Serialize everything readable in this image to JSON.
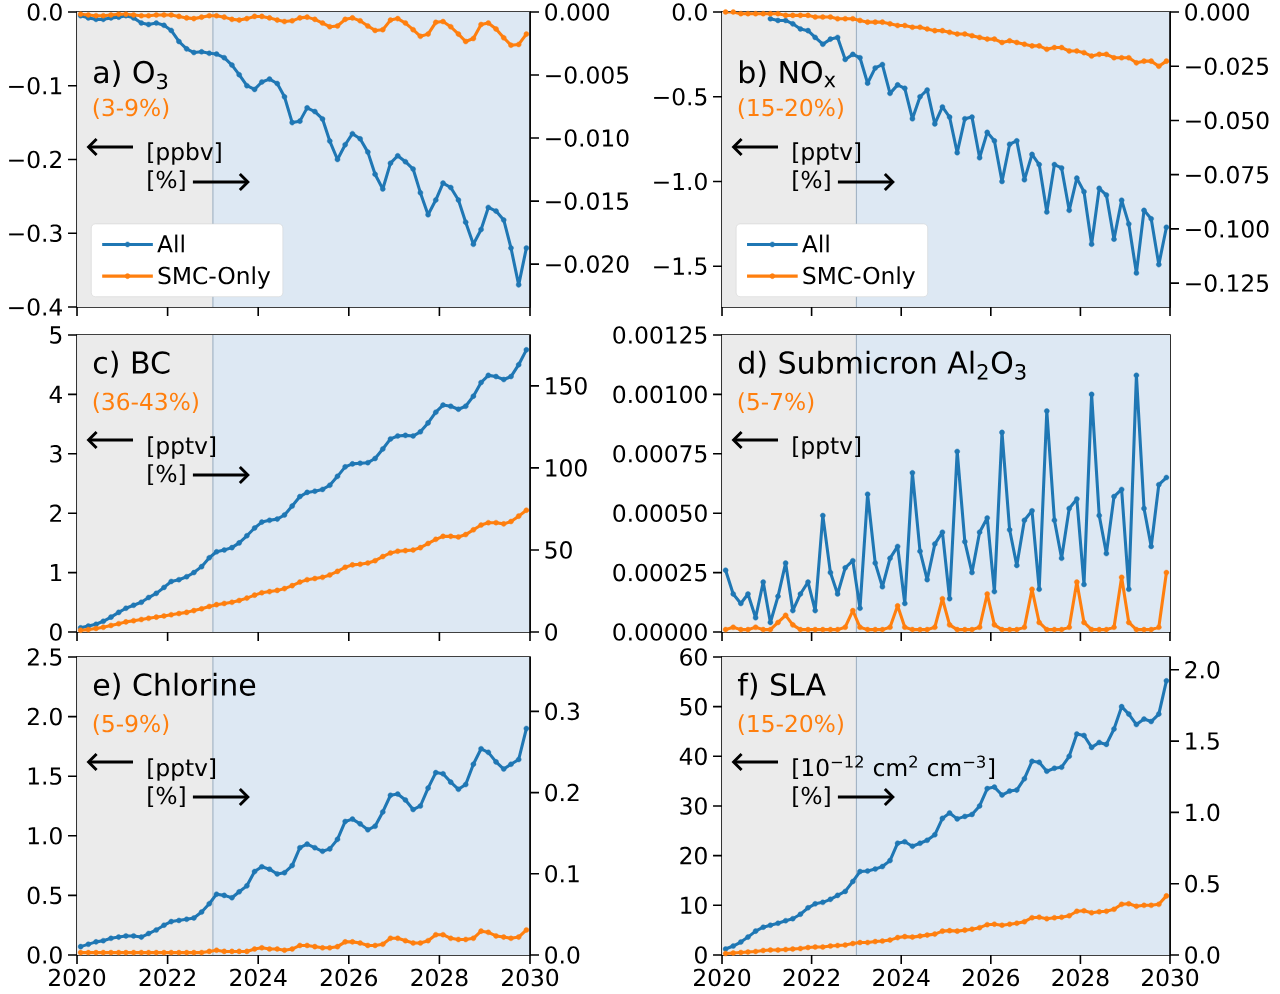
{
  "chart_data": [
    {
      "type": "line",
      "title": "a) O$_{3}$",
      "annotations": [
        "(3-9%)",
        "[ppbv]",
        "[%]"
      ],
      "marker": "circle",
      "legend": "bottom left",
      "tick_labels": "y",
      "xlim": [
        2020,
        2030
      ],
      "xticks": [
        2020,
        2022,
        2024,
        2026,
        2028,
        2030
      ],
      "ylim": [
        -0.4,
        0.0
      ],
      "yticks": [
        {
          "value": -0.4,
          "label": "−0.4"
        },
        {
          "value": -0.3,
          "label": "−0.3"
        },
        {
          "value": -0.2,
          "label": "−0.2"
        },
        {
          "value": -0.1,
          "label": "−0.1"
        },
        {
          "value": 0.0,
          "label": "0.0"
        }
      ],
      "y2lim": [
        -0.0234,
        0.0
      ],
      "y2ticks": [
        {
          "value": -0.02,
          "label": "−0.020"
        },
        {
          "value": -0.015,
          "label": "−0.015"
        },
        {
          "value": -0.01,
          "label": "−0.010"
        },
        {
          "value": -0.005,
          "label": "−0.005"
        },
        {
          "value": 0.0,
          "label": "0.000"
        }
      ],
      "bands": [
        {
          "axis": "x",
          "from": 2020,
          "to": 2023,
          "color": "#ebebeb"
        },
        {
          "axis": "x",
          "from": 2023,
          "to": 2030,
          "color": "#dde8f3"
        }
      ],
      "ref_lines": [
        {
          "axis": "x",
          "value": 2023,
          "color": "#a3b4c5"
        }
      ],
      "x": [
        2020.08,
        2020.25,
        2020.42,
        2020.58,
        2020.75,
        2020.92,
        2021.08,
        2021.25,
        2021.42,
        2021.58,
        2021.75,
        2021.92,
        2022.08,
        2022.25,
        2022.42,
        2022.58,
        2022.75,
        2022.92,
        2023.08,
        2023.25,
        2023.42,
        2023.58,
        2023.75,
        2023.92,
        2024.08,
        2024.25,
        2024.42,
        2024.58,
        2024.75,
        2024.92,
        2025.08,
        2025.25,
        2025.42,
        2025.58,
        2025.75,
        2025.92,
        2026.08,
        2026.25,
        2026.42,
        2026.58,
        2026.75,
        2026.92,
        2027.08,
        2027.25,
        2027.42,
        2027.58,
        2027.75,
        2027.92,
        2028.08,
        2028.25,
        2028.42,
        2028.58,
        2028.75,
        2028.92,
        2029.08,
        2029.25,
        2029.42,
        2029.58,
        2029.75,
        2029.92
      ],
      "series": [
        {
          "name": "All",
          "color": "#1f77b4",
          "values": [
            -0.005,
            -0.008,
            -0.01,
            -0.01,
            -0.008,
            -0.007,
            -0.005,
            -0.008,
            -0.015,
            -0.017,
            -0.015,
            -0.018,
            -0.025,
            -0.04,
            -0.05,
            -0.055,
            -0.054,
            -0.056,
            -0.057,
            -0.062,
            -0.072,
            -0.085,
            -0.1,
            -0.105,
            -0.095,
            -0.091,
            -0.097,
            -0.115,
            -0.15,
            -0.148,
            -0.13,
            -0.135,
            -0.145,
            -0.175,
            -0.2,
            -0.18,
            -0.165,
            -0.172,
            -0.19,
            -0.22,
            -0.24,
            -0.205,
            -0.195,
            -0.203,
            -0.213,
            -0.245,
            -0.275,
            -0.255,
            -0.232,
            -0.238,
            -0.255,
            -0.285,
            -0.315,
            -0.295,
            -0.265,
            -0.27,
            -0.282,
            -0.32,
            -0.37,
            -0.32
          ]
        },
        {
          "name": "SMC-Only",
          "color": "#ff7f0e",
          "values": [
            -0.003,
            -0.004,
            -0.005,
            -0.005,
            -0.004,
            -0.003,
            -0.003,
            -0.004,
            -0.005,
            -0.005,
            -0.004,
            -0.004,
            -0.004,
            -0.006,
            -0.008,
            -0.009,
            -0.007,
            -0.005,
            -0.005,
            -0.007,
            -0.01,
            -0.011,
            -0.009,
            -0.006,
            -0.006,
            -0.008,
            -0.011,
            -0.013,
            -0.012,
            -0.008,
            -0.007,
            -0.01,
            -0.015,
            -0.02,
            -0.019,
            -0.01,
            -0.008,
            -0.012,
            -0.019,
            -0.025,
            -0.024,
            -0.011,
            -0.009,
            -0.015,
            -0.024,
            -0.033,
            -0.03,
            -0.014,
            -0.013,
            -0.02,
            -0.03,
            -0.04,
            -0.036,
            -0.017,
            -0.015,
            -0.023,
            -0.035,
            -0.045,
            -0.044,
            -0.03
          ]
        }
      ]
    },
    {
      "type": "line",
      "title": "b) NO$_{x}$",
      "annotations": [
        "(15-20%)",
        "[pptv]",
        "[%]"
      ],
      "marker": "circle",
      "legend": "bottom left",
      "tick_labels": "y",
      "xlim": [
        2020,
        2030
      ],
      "xticks": [
        2020,
        2022,
        2024,
        2026,
        2028,
        2030
      ],
      "ylim": [
        -1.74,
        0.0
      ],
      "yticks": [
        {
          "value": -1.5,
          "label": "−1.5"
        },
        {
          "value": -1.0,
          "label": "−1.0"
        },
        {
          "value": -0.5,
          "label": "−0.5"
        },
        {
          "value": 0.0,
          "label": "0.0"
        }
      ],
      "y2lim": [
        -0.136,
        0.0
      ],
      "y2ticks": [
        {
          "value": -0.125,
          "label": "−0.125"
        },
        {
          "value": -0.1,
          "label": "−0.100"
        },
        {
          "value": -0.075,
          "label": "−0.075"
        },
        {
          "value": -0.05,
          "label": "−0.050"
        },
        {
          "value": -0.025,
          "label": "−0.025"
        },
        {
          "value": 0.0,
          "label": "0.000"
        }
      ],
      "bands": [
        {
          "axis": "x",
          "from": 2020,
          "to": 2023,
          "color": "#ebebeb"
        },
        {
          "axis": "x",
          "from": 2023,
          "to": 2030,
          "color": "#dde8f3"
        }
      ],
      "ref_lines": [
        {
          "axis": "x",
          "value": 2023,
          "color": "#a3b4c5"
        }
      ],
      "x": [
        2020.08,
        2020.25,
        2020.42,
        2020.58,
        2020.75,
        2020.92,
        2021.08,
        2021.25,
        2021.42,
        2021.58,
        2021.75,
        2021.92,
        2022.08,
        2022.25,
        2022.42,
        2022.58,
        2022.75,
        2022.92,
        2023.08,
        2023.25,
        2023.42,
        2023.58,
        2023.75,
        2023.92,
        2024.08,
        2024.25,
        2024.42,
        2024.58,
        2024.75,
        2024.92,
        2025.08,
        2025.25,
        2025.42,
        2025.58,
        2025.75,
        2025.92,
        2026.08,
        2026.25,
        2026.42,
        2026.58,
        2026.75,
        2026.92,
        2027.08,
        2027.25,
        2027.42,
        2027.58,
        2027.75,
        2027.92,
        2028.08,
        2028.25,
        2028.42,
        2028.58,
        2028.75,
        2028.92,
        2029.08,
        2029.25,
        2029.42,
        2029.58,
        2029.75,
        2029.92
      ],
      "series": [
        {
          "name": "All",
          "color": "#1f77b4",
          "values": [
            null,
            null,
            null,
            null,
            null,
            null,
            -0.04,
            -0.05,
            -0.05,
            -0.07,
            -0.1,
            -0.11,
            -0.15,
            -0.19,
            -0.16,
            -0.15,
            -0.28,
            -0.25,
            -0.27,
            -0.42,
            -0.33,
            -0.31,
            -0.48,
            -0.43,
            -0.45,
            -0.63,
            -0.5,
            -0.46,
            -0.66,
            -0.56,
            -0.62,
            -0.83,
            -0.63,
            -0.62,
            -0.86,
            -0.71,
            -0.76,
            -1.0,
            -0.78,
            -0.76,
            -0.99,
            -0.84,
            -0.9,
            -1.18,
            -0.9,
            -0.92,
            -1.17,
            -0.98,
            -1.06,
            -1.37,
            -1.04,
            -1.08,
            -1.34,
            -1.11,
            -1.25,
            -1.54,
            -1.17,
            -1.22,
            -1.49,
            -1.27
          ]
        },
        {
          "name": "SMC-Only",
          "color": "#ff7f0e",
          "values": [
            0,
            0,
            -0.01,
            -0.01,
            -0.01,
            -0.01,
            -0.01,
            -0.01,
            -0.02,
            -0.02,
            -0.02,
            -0.02,
            -0.03,
            -0.03,
            -0.03,
            -0.04,
            -0.04,
            -0.04,
            -0.05,
            -0.06,
            -0.06,
            -0.06,
            -0.07,
            -0.08,
            -0.08,
            -0.09,
            -0.09,
            -0.1,
            -0.11,
            -0.11,
            -0.12,
            -0.13,
            -0.13,
            -0.14,
            -0.15,
            -0.16,
            -0.16,
            -0.18,
            -0.17,
            -0.18,
            -0.19,
            -0.2,
            -0.2,
            -0.22,
            -0.21,
            -0.21,
            -0.23,
            -0.23,
            -0.24,
            -0.26,
            -0.25,
            -0.25,
            -0.27,
            -0.27,
            -0.27,
            -0.3,
            -0.29,
            -0.29,
            -0.32,
            -0.29
          ]
        }
      ]
    },
    {
      "type": "line",
      "title": "c) BC",
      "annotations": [
        "(36-43%)",
        "[pptv]",
        "[%]"
      ],
      "marker": "circle",
      "tick_labels": "y",
      "xlim": [
        2020,
        2030
      ],
      "xticks": [
        2020,
        2022,
        2024,
        2026,
        2028,
        2030
      ],
      "ylim": [
        0,
        5
      ],
      "yticks": [
        0,
        1,
        2,
        3,
        4,
        5
      ],
      "y2lim": [
        0,
        181
      ],
      "y2ticks": [
        0,
        50,
        100,
        150
      ],
      "bands": [
        {
          "axis": "x",
          "from": 2020,
          "to": 2023,
          "color": "#ebebeb"
        },
        {
          "axis": "x",
          "from": 2023,
          "to": 2030,
          "color": "#dde8f3"
        }
      ],
      "ref_lines": [
        {
          "axis": "x",
          "value": 2023,
          "color": "#a3b4c5"
        }
      ],
      "x": [
        2020.08,
        2020.25,
        2020.42,
        2020.58,
        2020.75,
        2020.92,
        2021.08,
        2021.25,
        2021.42,
        2021.58,
        2021.75,
        2021.92,
        2022.08,
        2022.25,
        2022.42,
        2022.58,
        2022.75,
        2022.92,
        2023.08,
        2023.25,
        2023.42,
        2023.58,
        2023.75,
        2023.92,
        2024.08,
        2024.25,
        2024.42,
        2024.58,
        2024.75,
        2024.92,
        2025.08,
        2025.25,
        2025.42,
        2025.58,
        2025.75,
        2025.92,
        2026.08,
        2026.25,
        2026.42,
        2026.58,
        2026.75,
        2026.92,
        2027.08,
        2027.25,
        2027.42,
        2027.58,
        2027.75,
        2027.92,
        2028.08,
        2028.25,
        2028.42,
        2028.58,
        2028.75,
        2028.92,
        2029.08,
        2029.25,
        2029.42,
        2029.58,
        2029.75,
        2029.92
      ],
      "series": [
        {
          "color": "#1f77b4",
          "values": [
            0.07,
            0.1,
            0.13,
            0.18,
            0.25,
            0.33,
            0.4,
            0.45,
            0.5,
            0.58,
            0.65,
            0.75,
            0.85,
            0.88,
            0.93,
            1.0,
            1.1,
            1.25,
            1.35,
            1.38,
            1.42,
            1.5,
            1.62,
            1.75,
            1.85,
            1.88,
            1.9,
            1.97,
            2.12,
            2.28,
            2.35,
            2.37,
            2.4,
            2.47,
            2.62,
            2.78,
            2.83,
            2.84,
            2.85,
            2.92,
            3.08,
            3.25,
            3.3,
            3.31,
            3.3,
            3.37,
            3.52,
            3.7,
            3.82,
            3.8,
            3.75,
            3.8,
            3.97,
            4.2,
            4.32,
            4.3,
            4.25,
            4.3,
            4.5,
            4.75
          ]
        },
        {
          "color": "#ff7f0e",
          "values": [
            0.03,
            0.04,
            0.06,
            0.08,
            0.11,
            0.14,
            0.17,
            0.19,
            0.21,
            0.23,
            0.25,
            0.27,
            0.29,
            0.31,
            0.33,
            0.36,
            0.39,
            0.43,
            0.46,
            0.48,
            0.5,
            0.53,
            0.57,
            0.62,
            0.66,
            0.68,
            0.7,
            0.73,
            0.78,
            0.84,
            0.88,
            0.9,
            0.92,
            0.96,
            1.02,
            1.09,
            1.13,
            1.14,
            1.16,
            1.2,
            1.27,
            1.33,
            1.36,
            1.37,
            1.38,
            1.42,
            1.49,
            1.56,
            1.61,
            1.61,
            1.6,
            1.64,
            1.72,
            1.8,
            1.84,
            1.84,
            1.82,
            1.86,
            1.95,
            2.05
          ]
        }
      ]
    },
    {
      "type": "line",
      "title": "d) Submicron Al$_{2}$O$_{3}$",
      "annotations": [
        "(5-7%)",
        "[pptv]"
      ],
      "marker": "circle",
      "tick_labels": "y",
      "xlim": [
        2020,
        2030
      ],
      "xticks": [
        2020,
        2022,
        2024,
        2026,
        2028,
        2030
      ],
      "ylim": [
        0,
        0.00125
      ],
      "yticks": [
        {
          "value": 0,
          "label": "0.00000"
        },
        {
          "value": 0.00025,
          "label": "0.00025"
        },
        {
          "value": 0.0005,
          "label": "0.00050"
        },
        {
          "value": 0.00075,
          "label": "0.00075"
        },
        {
          "value": 0.001,
          "label": "0.00100"
        },
        {
          "value": 0.00125,
          "label": "0.00125"
        }
      ],
      "bands": [
        {
          "axis": "x",
          "from": 2020,
          "to": 2023,
          "color": "#ebebeb"
        },
        {
          "axis": "x",
          "from": 2023,
          "to": 2030,
          "color": "#dde8f3"
        }
      ],
      "ref_lines": [
        {
          "axis": "x",
          "value": 2023,
          "color": "#a3b4c5"
        }
      ],
      "x": [
        2020.08,
        2020.25,
        2020.42,
        2020.58,
        2020.75,
        2020.92,
        2021.08,
        2021.25,
        2021.42,
        2021.58,
        2021.75,
        2021.92,
        2022.08,
        2022.25,
        2022.42,
        2022.58,
        2022.75,
        2022.92,
        2023.08,
        2023.25,
        2023.42,
        2023.58,
        2023.75,
        2023.92,
        2024.08,
        2024.25,
        2024.42,
        2024.58,
        2024.75,
        2024.92,
        2025.08,
        2025.25,
        2025.42,
        2025.58,
        2025.75,
        2025.92,
        2026.08,
        2026.25,
        2026.42,
        2026.58,
        2026.75,
        2026.92,
        2027.08,
        2027.25,
        2027.42,
        2027.58,
        2027.75,
        2027.92,
        2028.08,
        2028.25,
        2028.42,
        2028.58,
        2028.75,
        2028.92,
        2029.08,
        2029.25,
        2029.42,
        2029.58,
        2029.75,
        2029.92
      ],
      "series": [
        {
          "color": "#1f77b4",
          "values": [
            0.00026,
            0.00016,
            0.00012,
            0.00016,
            6e-05,
            0.00021,
            4e-05,
            0.00015,
            0.00029,
            9e-05,
            0.00016,
            0.00021,
            9e-05,
            0.00049,
            0.00025,
            0.00016,
            0.00027,
            0.0003,
            0.0001,
            0.00058,
            0.00029,
            0.00019,
            0.00031,
            0.00036,
            0.00012,
            0.00067,
            0.00034,
            0.00022,
            0.00037,
            0.00042,
            0.00014,
            0.00076,
            0.00038,
            0.00025,
            0.00042,
            0.00048,
            0.00017,
            0.00084,
            0.00043,
            0.00028,
            0.00047,
            0.00051,
            0.00018,
            0.00093,
            0.00047,
            0.00031,
            0.00052,
            0.00056,
            0.0002,
            0.001,
            0.00049,
            0.00033,
            0.00057,
            0.0006,
            0.00018,
            0.00108,
            0.00052,
            0.00036,
            0.00062,
            0.00065
          ]
        },
        {
          "color": "#ff7f0e",
          "values": [
            1e-05,
            2e-05,
            1e-05,
            1e-05,
            2e-05,
            1e-05,
            1e-05,
            4e-05,
            7e-05,
            3e-05,
            1e-05,
            1e-05,
            1e-05,
            1e-05,
            1e-05,
            1e-05,
            2e-05,
            9e-05,
            2e-05,
            1e-05,
            1e-05,
            1e-05,
            2e-05,
            0.00011,
            2e-05,
            1e-05,
            1e-05,
            1e-05,
            2e-05,
            0.00014,
            3e-05,
            1e-05,
            1e-05,
            1e-05,
            2e-05,
            0.00016,
            3e-05,
            1e-05,
            1e-05,
            1e-05,
            2e-05,
            0.00018,
            4e-05,
            1e-05,
            1e-05,
            1e-05,
            2e-05,
            0.00021,
            4e-05,
            1e-05,
            1e-05,
            1e-05,
            2e-05,
            0.00023,
            4e-05,
            1e-05,
            1e-05,
            1e-05,
            2e-05,
            0.00025
          ]
        }
      ]
    },
    {
      "type": "line",
      "title": "e) Chlorine",
      "annotations": [
        "(5-9%)",
        "[pptv]",
        "[%]"
      ],
      "marker": "circle",
      "xlim": [
        2020,
        2030
      ],
      "xticks": [
        2020,
        2022,
        2024,
        2026,
        2028,
        2030
      ],
      "ylim": [
        0,
        2.5
      ],
      "yticks": [
        {
          "value": 0,
          "label": "0.0"
        },
        0.5,
        {
          "value": 1,
          "label": "1.0"
        },
        1.5,
        {
          "value": 2,
          "label": "2.0"
        },
        2.5
      ],
      "y2lim": [
        0,
        0.367
      ],
      "y2ticks": [
        {
          "value": 0,
          "label": "0.0"
        },
        0.1,
        0.2,
        0.3
      ],
      "bands": [
        {
          "axis": "x",
          "from": 2020,
          "to": 2023,
          "color": "#ebebeb"
        },
        {
          "axis": "x",
          "from": 2023,
          "to": 2030,
          "color": "#dde8f3"
        }
      ],
      "ref_lines": [
        {
          "axis": "x",
          "value": 2023,
          "color": "#a3b4c5"
        }
      ],
      "x": [
        2020.08,
        2020.25,
        2020.42,
        2020.58,
        2020.75,
        2020.92,
        2021.08,
        2021.25,
        2021.42,
        2021.58,
        2021.75,
        2021.92,
        2022.08,
        2022.25,
        2022.42,
        2022.58,
        2022.75,
        2022.92,
        2023.08,
        2023.25,
        2023.42,
        2023.58,
        2023.75,
        2023.92,
        2024.08,
        2024.25,
        2024.42,
        2024.58,
        2024.75,
        2024.92,
        2025.08,
        2025.25,
        2025.42,
        2025.58,
        2025.75,
        2025.92,
        2026.08,
        2026.25,
        2026.42,
        2026.58,
        2026.75,
        2026.92,
        2027.08,
        2027.25,
        2027.42,
        2027.58,
        2027.75,
        2027.92,
        2028.08,
        2028.25,
        2028.42,
        2028.58,
        2028.75,
        2028.92,
        2029.08,
        2029.25,
        2029.42,
        2029.58,
        2029.75,
        2029.92
      ],
      "series": [
        {
          "color": "#1f77b4",
          "values": [
            0.07,
            0.09,
            0.11,
            0.12,
            0.14,
            0.15,
            0.16,
            0.16,
            0.15,
            0.18,
            0.21,
            0.25,
            0.28,
            0.29,
            0.3,
            0.31,
            0.36,
            0.43,
            0.51,
            0.5,
            0.48,
            0.53,
            0.58,
            0.7,
            0.74,
            0.72,
            0.68,
            0.69,
            0.75,
            0.9,
            0.93,
            0.9,
            0.87,
            0.89,
            0.97,
            1.12,
            1.14,
            1.1,
            1.05,
            1.08,
            1.2,
            1.34,
            1.35,
            1.3,
            1.22,
            1.25,
            1.4,
            1.53,
            1.52,
            1.45,
            1.39,
            1.43,
            1.6,
            1.73,
            1.7,
            1.62,
            1.56,
            1.6,
            1.64,
            1.9
          ]
        },
        {
          "color": "#ff7f0e",
          "values": [
            0.02,
            0.02,
            0.02,
            0.02,
            0.02,
            0.02,
            0.02,
            0.02,
            0.02,
            0.02,
            0.02,
            0.02,
            0.02,
            0.02,
            0.02,
            0.02,
            0.02,
            0.03,
            0.04,
            0.03,
            0.03,
            0.03,
            0.03,
            0.05,
            0.06,
            0.05,
            0.05,
            0.04,
            0.05,
            0.08,
            0.08,
            0.07,
            0.06,
            0.06,
            0.07,
            0.11,
            0.11,
            0.1,
            0.08,
            0.08,
            0.09,
            0.14,
            0.14,
            0.12,
            0.1,
            0.1,
            0.12,
            0.17,
            0.17,
            0.14,
            0.13,
            0.13,
            0.14,
            0.2,
            0.19,
            0.16,
            0.15,
            0.14,
            0.15,
            0.21
          ]
        }
      ]
    },
    {
      "type": "line",
      "title": "f) SLA",
      "annotations": [
        "(15-20%)",
        "[10$^{−12}$ cm$^{2}$ cm$^{−3}$]",
        "[%]"
      ],
      "marker": "circle",
      "xlim": [
        2020,
        2030
      ],
      "xticks": [
        2020,
        2022,
        2024,
        2026,
        2028,
        2030
      ],
      "ylim": [
        0,
        60
      ],
      "yticks": [
        0,
        10,
        20,
        30,
        40,
        50,
        60
      ],
      "y2lim": [
        0,
        2.09
      ],
      "y2ticks": [
        {
          "value": 0,
          "label": "0.0"
        },
        0.5,
        {
          "value": 1,
          "label": "1.0"
        },
        1.5,
        {
          "value": 2,
          "label": "2.0"
        }
      ],
      "bands": [
        {
          "axis": "x",
          "from": 2020,
          "to": 2023,
          "color": "#ebebeb"
        },
        {
          "axis": "x",
          "from": 2023,
          "to": 2030,
          "color": "#dde8f3"
        }
      ],
      "ref_lines": [
        {
          "axis": "x",
          "value": 2023,
          "color": "#a3b4c5"
        }
      ],
      "x": [
        2020.08,
        2020.25,
        2020.42,
        2020.58,
        2020.75,
        2020.92,
        2021.08,
        2021.25,
        2021.42,
        2021.58,
        2021.75,
        2021.92,
        2022.08,
        2022.25,
        2022.42,
        2022.58,
        2022.75,
        2022.92,
        2023.08,
        2023.25,
        2023.42,
        2023.58,
        2023.75,
        2023.92,
        2024.08,
        2024.25,
        2024.42,
        2024.58,
        2024.75,
        2024.92,
        2025.08,
        2025.25,
        2025.42,
        2025.58,
        2025.75,
        2025.92,
        2026.08,
        2026.25,
        2026.42,
        2026.58,
        2026.75,
        2026.92,
        2027.08,
        2027.25,
        2027.42,
        2027.58,
        2027.75,
        2027.92,
        2028.08,
        2028.25,
        2028.42,
        2028.58,
        2028.75,
        2028.92,
        2029.08,
        2029.25,
        2029.42,
        2029.58,
        2029.75,
        2029.92
      ],
      "series": [
        {
          "color": "#1f77b4",
          "values": [
            1.2,
            1.8,
            2.6,
            3.6,
            4.8,
            5.6,
            6.0,
            6.4,
            6.9,
            7.3,
            8.2,
            9.5,
            10.3,
            10.6,
            11.2,
            12.0,
            12.8,
            14.8,
            16.8,
            16.9,
            17.3,
            17.8,
            19.0,
            22.5,
            22.8,
            21.9,
            22.5,
            23.1,
            24.2,
            27.5,
            28.6,
            27.4,
            27.9,
            28.3,
            30.0,
            33.5,
            33.8,
            32.2,
            33.0,
            33.2,
            35.5,
            39.0,
            38.8,
            37.0,
            37.6,
            37.8,
            40.0,
            44.5,
            44.2,
            41.8,
            42.8,
            42.4,
            45.5,
            50.0,
            48.5,
            46.4,
            47.5,
            47.0,
            48.5,
            55.2
          ]
        },
        {
          "color": "#ff7f0e",
          "values": [
            0.3,
            0.4,
            0.5,
            0.6,
            0.7,
            0.9,
            1.0,
            1.0,
            1.1,
            1.2,
            1.3,
            1.5,
            1.6,
            1.6,
            1.8,
            1.9,
            2.0,
            2.3,
            2.5,
            2.5,
            2.7,
            2.8,
            3.0,
            3.5,
            3.7,
            3.6,
            3.8,
            4.0,
            4.2,
            4.8,
            4.9,
            4.8,
            5.0,
            5.2,
            5.5,
            6.1,
            6.2,
            6.0,
            6.2,
            6.4,
            6.7,
            7.5,
            7.6,
            7.3,
            7.5,
            7.6,
            7.9,
            8.8,
            8.9,
            8.5,
            8.7,
            8.8,
            9.2,
            10.2,
            10.3,
            9.8,
            10.0,
            10.0,
            10.2,
            11.9
          ]
        }
      ]
    }
  ]
}
